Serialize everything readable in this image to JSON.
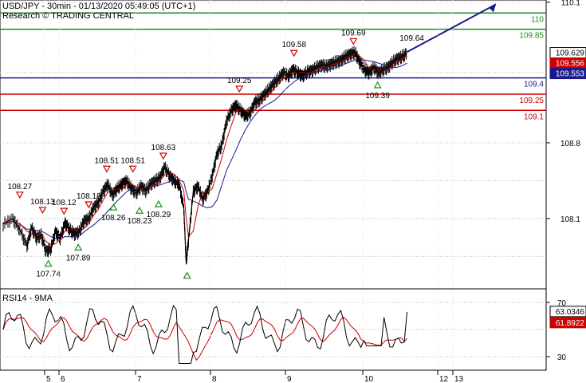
{
  "header": {
    "line1": "USD/JPY - 30min - 01/13/2020 05:49:05 (UTC+1)",
    "line2": "Research © TRADING CENTRAL"
  },
  "chart_data": [
    {
      "type": "line",
      "name": "price",
      "ylim": [
        107.45,
        110.12
      ],
      "y_ticks": [
        "110.1",
        "109.629",
        "109.556",
        "109.553",
        "108.8",
        "108.1"
      ],
      "x_ticks": [
        "5",
        "6",
        "7",
        "8",
        "9",
        "10",
        "12",
        "13"
      ],
      "current_price": {
        "label": "109.629",
        "value": 109.629,
        "color": "#000000"
      },
      "ma_fast_price": {
        "label": "109.556",
        "value": 109.556,
        "color": "#cc0000"
      },
      "ma_slow_price": {
        "label": "109.553",
        "value": 109.553,
        "color": "#1a1a8c"
      },
      "levels": [
        {
          "label": "110",
          "value": 110.0,
          "color": "#1e8c1e",
          "text_color": "#1e8c1e"
        },
        {
          "label": "109.85",
          "value": 109.85,
          "color": "#1e8c1e",
          "text_color": "#1e8c1e"
        },
        {
          "label": "109.4",
          "value": 109.4,
          "color": "#1a1a8c",
          "text_color": "#1a1a8c"
        },
        {
          "label": "109.25",
          "value": 109.25,
          "color": "#cc0000",
          "text_color": "#cc0000"
        },
        {
          "label": "109.1",
          "value": 109.1,
          "color": "#cc0000",
          "text_color": "#cc0000"
        }
      ],
      "annotations": [
        {
          "label": "108.27",
          "value": 108.27,
          "kind": "peak",
          "t": 0.035
        },
        {
          "label": "108.13",
          "value": 108.13,
          "kind": "peak",
          "t": 0.083
        },
        {
          "label": "108.12",
          "value": 108.12,
          "kind": "peak",
          "t": 0.128
        },
        {
          "label": "107.74",
          "value": 107.74,
          "kind": "trough",
          "t": 0.095
        },
        {
          "label": "108.18",
          "value": 108.18,
          "kind": "peak",
          "t": 0.18
        },
        {
          "label": "107.89",
          "value": 107.89,
          "kind": "trough",
          "t": 0.158
        },
        {
          "label": "108.51",
          "value": 108.51,
          "kind": "peak",
          "t": 0.218
        },
        {
          "label": "108.26",
          "value": 108.26,
          "kind": "trough",
          "t": 0.232
        },
        {
          "label": "108.51",
          "value": 108.51,
          "kind": "peak",
          "t": 0.273
        },
        {
          "label": "108.23",
          "value": 108.23,
          "kind": "trough",
          "t": 0.287
        },
        {
          "label": "108.63",
          "value": 108.63,
          "kind": "peak",
          "t": 0.337
        },
        {
          "label": "108.29",
          "value": 108.29,
          "kind": "trough",
          "t": 0.327
        },
        {
          "label": "109.25",
          "value": 109.25,
          "kind": "peak",
          "t": 0.497
        },
        {
          "label": "109.58",
          "value": 109.58,
          "kind": "peak",
          "t": 0.612
        },
        {
          "label": "109.69",
          "value": 109.69,
          "kind": "peak",
          "t": 0.737
        },
        {
          "label": "109.39",
          "value": 109.39,
          "kind": "trough",
          "t": 0.788
        },
        {
          "label": "109.64",
          "value": 109.64,
          "kind": "label",
          "t": 0.86
        }
      ],
      "marker_lows": [
        {
          "value": 107.6,
          "t": 0.387
        }
      ],
      "forecast_arrow": {
        "from": 109.64,
        "to": 110.08,
        "color": "#1a1a8c"
      },
      "price_path": [
        [
          0.0,
          108.05
        ],
        [
          0.02,
          108.1
        ],
        [
          0.035,
          108.0
        ],
        [
          0.05,
          107.85
        ],
        [
          0.06,
          108.02
        ],
        [
          0.07,
          107.92
        ],
        [
          0.08,
          107.95
        ],
        [
          0.09,
          107.8
        ],
        [
          0.1,
          107.82
        ],
        [
          0.11,
          107.98
        ],
        [
          0.12,
          107.92
        ],
        [
          0.13,
          108.06
        ],
        [
          0.14,
          108.0
        ],
        [
          0.15,
          107.96
        ],
        [
          0.16,
          107.98
        ],
        [
          0.17,
          108.08
        ],
        [
          0.18,
          108.1
        ],
        [
          0.19,
          108.2
        ],
        [
          0.2,
          108.25
        ],
        [
          0.21,
          108.35
        ],
        [
          0.22,
          108.42
        ],
        [
          0.23,
          108.32
        ],
        [
          0.24,
          108.38
        ],
        [
          0.25,
          108.42
        ],
        [
          0.26,
          108.45
        ],
        [
          0.27,
          108.38
        ],
        [
          0.28,
          108.34
        ],
        [
          0.29,
          108.4
        ],
        [
          0.3,
          108.36
        ],
        [
          0.31,
          108.42
        ],
        [
          0.32,
          108.45
        ],
        [
          0.33,
          108.48
        ],
        [
          0.34,
          108.58
        ],
        [
          0.35,
          108.5
        ],
        [
          0.36,
          108.45
        ],
        [
          0.37,
          108.42
        ],
        [
          0.38,
          108.2
        ],
        [
          0.385,
          107.7
        ],
        [
          0.39,
          107.9
        ],
        [
          0.4,
          108.35
        ],
        [
          0.41,
          108.4
        ],
        [
          0.42,
          108.28
        ],
        [
          0.43,
          108.35
        ],
        [
          0.44,
          108.5
        ],
        [
          0.45,
          108.7
        ],
        [
          0.46,
          108.78
        ],
        [
          0.47,
          109.0
        ],
        [
          0.48,
          109.1
        ],
        [
          0.49,
          109.15
        ],
        [
          0.5,
          109.1
        ],
        [
          0.51,
          109.05
        ],
        [
          0.52,
          109.08
        ],
        [
          0.53,
          109.18
        ],
        [
          0.54,
          109.2
        ],
        [
          0.55,
          109.25
        ],
        [
          0.56,
          109.3
        ],
        [
          0.57,
          109.35
        ],
        [
          0.58,
          109.4
        ],
        [
          0.59,
          109.45
        ],
        [
          0.6,
          109.42
        ],
        [
          0.61,
          109.48
        ],
        [
          0.62,
          109.45
        ],
        [
          0.63,
          109.42
        ],
        [
          0.64,
          109.46
        ],
        [
          0.65,
          109.47
        ],
        [
          0.66,
          109.5
        ],
        [
          0.67,
          109.52
        ],
        [
          0.68,
          109.51
        ],
        [
          0.69,
          109.53
        ],
        [
          0.7,
          109.55
        ],
        [
          0.71,
          109.56
        ],
        [
          0.72,
          109.6
        ],
        [
          0.73,
          109.62
        ],
        [
          0.74,
          109.64
        ],
        [
          0.75,
          109.55
        ],
        [
          0.76,
          109.48
        ],
        [
          0.77,
          109.45
        ],
        [
          0.78,
          109.5
        ],
        [
          0.79,
          109.45
        ],
        [
          0.8,
          109.48
        ],
        [
          0.81,
          109.5
        ],
        [
          0.82,
          109.55
        ],
        [
          0.83,
          109.58
        ],
        [
          0.84,
          109.6
        ],
        [
          0.85,
          109.63
        ]
      ]
    },
    {
      "type": "line",
      "name": "RSI",
      "title": "RSI14 - 9MA",
      "ylim": [
        20,
        80
      ],
      "y_ticks": [
        "70",
        "63.0346",
        "61.8922",
        "30"
      ],
      "rsi_value": {
        "label": "63.0346",
        "value": 63.0346,
        "color": "#000000"
      },
      "ma_value": {
        "label": "61.8922",
        "value": 61.8922,
        "color": "#cc0000"
      }
    }
  ]
}
